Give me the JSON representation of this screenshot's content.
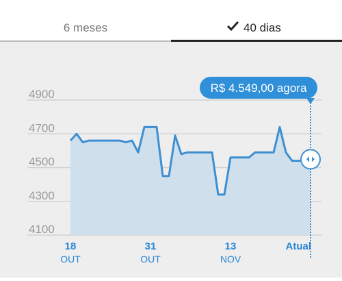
{
  "tabs": [
    "6 meses",
    "40 dias"
  ],
  "chart_data": {
    "type": "line",
    "annotation": "R$ 4.549,00 agora",
    "categories": [
      [
        "18",
        "OUT"
      ],
      null,
      null,
      null,
      null,
      null,
      null,
      null,
      null,
      null,
      null,
      null,
      null,
      [
        "31",
        "OUT"
      ],
      null,
      null,
      null,
      null,
      null,
      null,
      null,
      null,
      null,
      null,
      null,
      null,
      [
        "13",
        "NOV"
      ],
      null,
      null,
      null,
      null,
      null,
      null,
      null,
      null,
      null,
      null,
      null,
      null,
      [
        "Atual"
      ]
    ],
    "values": [
      4660,
      4700,
      4650,
      4660,
      4660,
      4660,
      4660,
      4660,
      4660,
      4650,
      4660,
      4590,
      4740,
      4740,
      4740,
      4450,
      4450,
      4690,
      4580,
      4590,
      4590,
      4590,
      4590,
      4590,
      4340,
      4340,
      4560,
      4560,
      4560,
      4560,
      4590,
      4590,
      4590,
      4590,
      4740,
      4590,
      4540,
      4540,
      4540,
      4549
    ],
    "color": "#3d8fd1",
    "ylim": [
      4100,
      4900
    ],
    "yticks": [
      4100,
      4300,
      4500,
      4700,
      4900
    ],
    "grid": true
  }
}
